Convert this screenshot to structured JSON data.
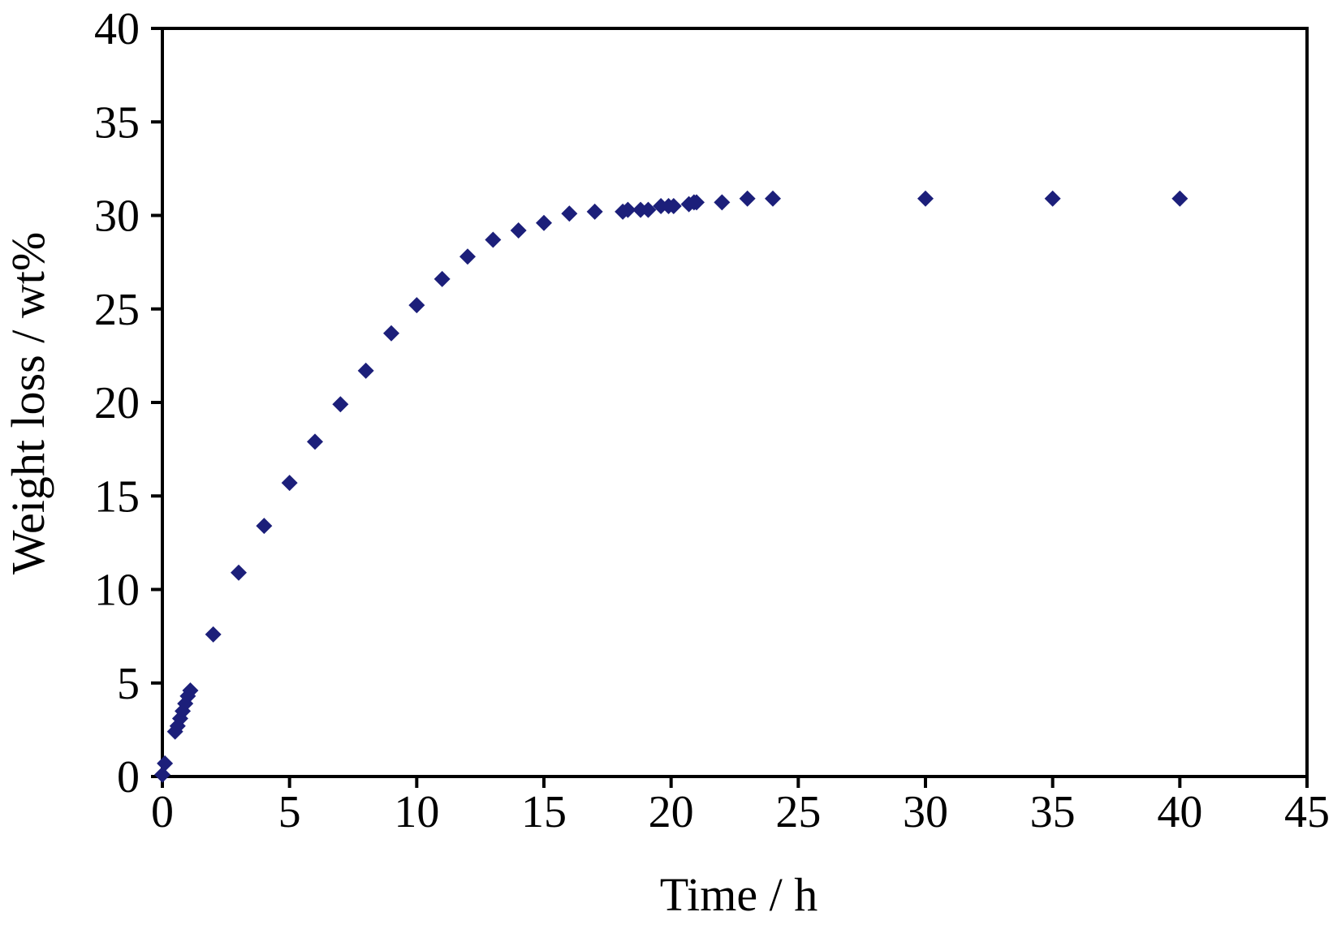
{
  "chart_data": {
    "type": "scatter",
    "title": "",
    "xlabel": "Time / h",
    "ylabel": "Weight loss / wt%",
    "xlim": [
      0,
      45
    ],
    "ylim": [
      0,
      40
    ],
    "x_ticks": [
      0,
      5,
      10,
      15,
      20,
      25,
      30,
      35,
      40,
      45
    ],
    "y_ticks": [
      0,
      5,
      10,
      15,
      20,
      25,
      30,
      35,
      40
    ],
    "grid": false,
    "legend": "none",
    "marker": "diamond",
    "series": [
      {
        "color": "#1c1f7a",
        "points": [
          [
            0,
            0.1
          ],
          [
            0.1,
            0.7
          ],
          [
            0.5,
            2.4
          ],
          [
            0.6,
            2.7
          ],
          [
            0.7,
            3.1
          ],
          [
            0.8,
            3.5
          ],
          [
            0.9,
            3.9
          ],
          [
            1.0,
            4.3
          ],
          [
            1.1,
            4.6
          ],
          [
            2,
            7.6
          ],
          [
            3,
            10.9
          ],
          [
            4,
            13.4
          ],
          [
            5,
            15.7
          ],
          [
            6,
            17.9
          ],
          [
            7,
            19.9
          ],
          [
            8,
            21.7
          ],
          [
            9,
            23.7
          ],
          [
            10,
            25.2
          ],
          [
            11,
            26.6
          ],
          [
            12,
            27.8
          ],
          [
            13,
            28.7
          ],
          [
            14,
            29.2
          ],
          [
            15,
            29.6
          ],
          [
            16,
            30.1
          ],
          [
            17,
            30.2
          ],
          [
            18.1,
            30.2
          ],
          [
            18.3,
            30.3
          ],
          [
            18.8,
            30.3
          ],
          [
            19.1,
            30.3
          ],
          [
            19.6,
            30.5
          ],
          [
            19.9,
            30.5
          ],
          [
            20.1,
            30.5
          ],
          [
            20.7,
            30.6
          ],
          [
            20.9,
            30.7
          ],
          [
            21.0,
            30.7
          ],
          [
            22,
            30.7
          ],
          [
            23,
            30.9
          ],
          [
            24,
            30.9
          ],
          [
            30,
            30.9
          ],
          [
            35,
            30.9
          ],
          [
            40,
            30.9
          ]
        ]
      }
    ]
  }
}
